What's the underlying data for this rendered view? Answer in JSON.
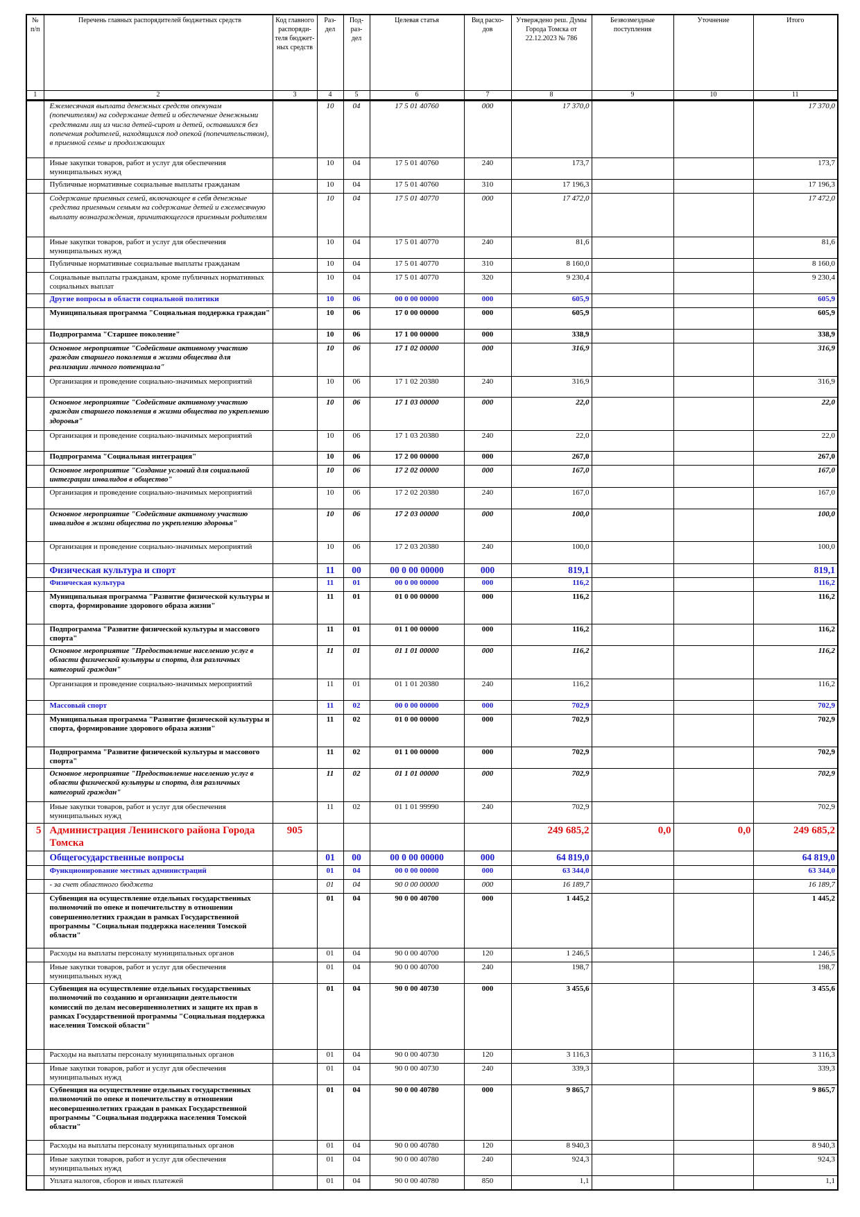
{
  "table": {
    "header": [
      "№ п/п",
      "Перечень главных распорядителей бюджетных средств",
      "Код главного распоряди-теля бюджет-ных средств",
      "Раз-дел",
      "Под-раз-дел",
      "Целевая статья",
      "Вид расхо-дов",
      "Утверждено реш. Думы Города Томска от 22.12.2023 № 786",
      "Безвозмездные поступления",
      "Уточнение",
      "Итого"
    ],
    "numbers": [
      "1",
      "2",
      "3",
      "4",
      "5",
      "6",
      "7",
      "8",
      "9",
      "10",
      "11"
    ],
    "rows": [
      [
        null,
        "Ежемесячная выплата денежных средств опекунам (попечителям) на содержание детей и обеспечение денежными средствами лиц из числа детей-сирот и детей, оставшихся без попечения родителей, находящихся под опекой (попечительством), в приемной семье и продолжающих",
        null,
        "10",
        "04",
        "17 5 01 40760",
        "000",
        "17 370,0",
        null,
        null,
        "17 370,0"
      ],
      [
        null,
        "Иные закупки товаров, работ и услуг для обеспечения муниципальных нужд",
        null,
        "10",
        "04",
        "17 5 01 40760",
        "240",
        "173,7",
        null,
        null,
        "173,7"
      ],
      [
        null,
        "Публичные нормативные социальные выплаты гражданам",
        null,
        "10",
        "04",
        "17 5 01 40760",
        "310",
        "17 196,3",
        null,
        null,
        "17 196,3"
      ],
      [
        null,
        "Содержание приемных семей, включающее в себя денежные средства приемным семьям на содержание детей и ежемесячную выплату вознаграждения, причитающегося приемным родителям",
        null,
        "10",
        "04",
        "17 5 01 40770",
        "000",
        "17 472,0",
        null,
        null,
        "17 472,0"
      ],
      [
        null,
        "Иные закупки товаров, работ и услуг для обеспечения муниципальных нужд",
        null,
        "10",
        "04",
        "17 5 01 40770",
        "240",
        "81,6",
        null,
        null,
        "81,6"
      ],
      [
        null,
        "Публичные нормативные социальные выплаты гражданам",
        null,
        "10",
        "04",
        "17 5 01 40770",
        "310",
        "8 160,0",
        null,
        null,
        "8 160,0"
      ],
      [
        null,
        "Социальные выплаты гражданам, кроме публичных нормативных социальных выплат",
        null,
        "10",
        "04",
        "17 5 01 40770",
        "320",
        "9 230,4",
        null,
        null,
        "9 230,4"
      ],
      [
        null,
        "Другие вопросы в области социальной политики",
        null,
        "10",
        "06",
        "00 0 00 00000",
        "000",
        "605,9",
        null,
        null,
        "605,9"
      ],
      [
        null,
        "Муниципальная программа \"Социальная поддержка граждан\"",
        null,
        "10",
        "06",
        "17 0 00 00000",
        "000",
        "605,9",
        null,
        null,
        "605,9"
      ],
      [
        null,
        "Подпрограмма \"Старшее поколение\"",
        null,
        "10",
        "06",
        "17 1 00 00000",
        "000",
        "338,9",
        null,
        null,
        "338,9"
      ],
      [
        null,
        "Основное мероприятие \"Содействие активному участию граждан старшего поколения в жизни общества для реализации личного потенциала\"",
        null,
        "10",
        "06",
        "17 1 02 00000",
        "000",
        "316,9",
        null,
        null,
        "316,9"
      ],
      [
        null,
        "Организация и проведение социально-значимых мероприятий",
        null,
        "10",
        "06",
        "17 1 02 20380",
        "240",
        "316,9",
        null,
        null,
        "316,9"
      ],
      [
        null,
        "Основное мероприятие \"Содействие активному участию граждан старшего поколения в жизни общества по укреплению здоровья\"",
        null,
        "10",
        "06",
        "17 1 03 00000",
        "000",
        "22,0",
        null,
        null,
        "22,0"
      ],
      [
        null,
        "Организация и проведение социально-значимых мероприятий",
        null,
        "10",
        "06",
        "17 1 03 20380",
        "240",
        "22,0",
        null,
        null,
        "22,0"
      ],
      [
        null,
        "Подпрограмма \"Социальная интеграция\"",
        null,
        "10",
        "06",
        "17 2 00 00000",
        "000",
        "267,0",
        null,
        null,
        "267,0"
      ],
      [
        null,
        "Основное мероприятие \"Создание условий для социальной интеграции инвалидов в общество\"",
        null,
        "10",
        "06",
        "17 2 02 00000",
        "000",
        "167,0",
        null,
        null,
        "167,0"
      ],
      [
        null,
        "Организация и проведение социально-значимых мероприятий",
        null,
        "10",
        "06",
        "17 2 02 20380",
        "240",
        "167,0",
        null,
        null,
        "167,0"
      ],
      [
        null,
        "Основное мероприятие \"Содействие активному участию инвалидов в жизни общества по укреплению здоровья\"",
        null,
        "10",
        "06",
        "17 2 03 00000",
        "000",
        "100,0",
        null,
        null,
        "100,0"
      ],
      [
        null,
        "Организация и проведение социально-значимых мероприятий",
        null,
        "10",
        "06",
        "17 2 03 20380",
        "240",
        "100,0",
        null,
        null,
        "100,0"
      ],
      [
        null,
        "Физическая культура и спорт",
        null,
        "11",
        "00",
        "00 0 00 00000",
        "000",
        "819,1",
        null,
        null,
        "819,1"
      ],
      [
        null,
        "Физическая культура",
        null,
        "11",
        "01",
        "00 0 00 00000",
        "000",
        "116,2",
        null,
        null,
        "116,2"
      ],
      [
        null,
        "Муниципальная программа \"Развитие физической культуры и спорта, формирование здорового образа жизни\"",
        null,
        "11",
        "01",
        "01 0 00 00000",
        "000",
        "116,2",
        null,
        null,
        "116,2"
      ],
      [
        null,
        "Подпрограмма \"Развитие физической культуры и массового спорта\"",
        null,
        "11",
        "01",
        "01 1 00 00000",
        "000",
        "116,2",
        null,
        null,
        "116,2"
      ],
      [
        null,
        "Основное мероприятие \"Предоставление населению услуг в области физической культуры и спорта, для различных категорий граждан\"",
        null,
        "11",
        "01",
        "01 1 01 00000",
        "000",
        "116,2",
        null,
        null,
        "116,2"
      ],
      [
        null,
        "Организация и проведение социально-значимых мероприятий",
        null,
        "11",
        "01",
        "01 1 01 20380",
        "240",
        "116,2",
        null,
        null,
        "116,2"
      ],
      [
        null,
        "Массовый спорт",
        null,
        "11",
        "02",
        "00 0 00 00000",
        "000",
        "702,9",
        null,
        null,
        "702,9"
      ],
      [
        null,
        "Муниципальная программа \"Развитие физической культуры и спорта, формирование здорового образа жизни\"",
        null,
        "11",
        "02",
        "01 0 00 00000",
        "000",
        "702,9",
        null,
        null,
        "702,9"
      ],
      [
        null,
        "Подпрограмма \"Развитие физической культуры и массового спорта\"",
        null,
        "11",
        "02",
        "01 1 00 00000",
        "000",
        "702,9",
        null,
        null,
        "702,9"
      ],
      [
        null,
        "Основное мероприятие \"Предоставление населению услуг в области физической культуры и спорта, для различных категорий граждан\"",
        null,
        "11",
        "02",
        "01 1 01 00000",
        "000",
        "702,9",
        null,
        null,
        "702,9"
      ],
      [
        null,
        "Иные закупки товаров, работ и услуг для обеспечения муниципальных нужд",
        null,
        "11",
        "02",
        "01 1 01 99990",
        "240",
        "702,9",
        null,
        null,
        "702,9"
      ],
      [
        "5",
        "Администрация Ленинского района Города Томска",
        "905",
        null,
        null,
        null,
        null,
        "249 685,2",
        "0,0",
        "0,0",
        "249 685,2"
      ],
      [
        null,
        "Общегосударственные вопросы",
        null,
        "01",
        "00",
        "00 0 00 00000",
        "000",
        "64 819,0",
        null,
        null,
        "64 819,0"
      ],
      [
        null,
        "Функционирование местных администраций",
        null,
        "01",
        "04",
        "00 0 00 00000",
        "000",
        "63 344,0",
        null,
        null,
        "63 344,0"
      ],
      [
        null,
        "- за счет областного бюджета",
        null,
        "01",
        "04",
        "90 0 00 00000",
        "000",
        "16 189,7",
        null,
        null,
        "16 189,7"
      ],
      [
        null,
        "Субвенция на осуществление отдельных государственных полномочий по опеке и попечительству в отношении совершеннолетних граждан в рамках Государственной программы \"Социальная поддержка населения Томской области\"",
        null,
        "01",
        "04",
        "90 0 00 40700",
        "000",
        "1 445,2",
        null,
        null,
        "1 445,2"
      ],
      [
        null,
        "Расходы на выплаты персоналу муниципальных органов",
        null,
        "01",
        "04",
        "90 0 00 40700",
        "120",
        "1 246,5",
        null,
        null,
        "1 246,5"
      ],
      [
        null,
        "Иные закупки товаров, работ и услуг для обеспечения муниципальных нужд",
        null,
        "01",
        "04",
        "90 0 00 40700",
        "240",
        "198,7",
        null,
        null,
        "198,7"
      ],
      [
        null,
        "Субвенция на осуществление отдельных государственных полномочий по созданию и организации деятельности комиссий по делам несовершеннолетних и защите их прав в рамках Государственной программы \"Социальная поддержка населения Томской области\"",
        null,
        "01",
        "04",
        "90 0 00 40730",
        "000",
        "3 455,6",
        null,
        null,
        "3 455,6"
      ],
      [
        null,
        "Расходы на выплаты персоналу муниципальных органов",
        null,
        "01",
        "04",
        "90 0 00 40730",
        "120",
        "3 116,3",
        null,
        null,
        "3 116,3"
      ],
      [
        null,
        "Иные закупки товаров, работ и услуг для обеспечения муниципальных нужд",
        null,
        "01",
        "04",
        "90 0 00 40730",
        "240",
        "339,3",
        null,
        null,
        "339,3"
      ],
      [
        null,
        "Субвенция на осуществление отдельных государственных полномочий по опеке и попечительству в отношении несовершеннолетних граждан в рамках Государственной программы \"Социальная поддержка населения Томской области\"",
        null,
        "01",
        "04",
        "90 0 00 40780",
        "000",
        "9 865,7",
        null,
        null,
        "9 865,7"
      ],
      [
        null,
        "Расходы на выплаты персоналу муниципальных органов",
        null,
        "01",
        "04",
        "90 0 00 40780",
        "120",
        "8 940,3",
        null,
        null,
        "8 940,3"
      ],
      [
        null,
        "Иные закупки товаров, работ и услуг для обеспечения муниципальных нужд",
        null,
        "01",
        "04",
        "90 0 00 40780",
        "240",
        "924,3",
        null,
        null,
        "924,3"
      ],
      [
        null,
        "Уплата налогов, сборов и иных платежей",
        null,
        "01",
        "04",
        "90 0 00 40780",
        "850",
        "1,1",
        null,
        null,
        "1,1"
      ]
    ]
  }
}
